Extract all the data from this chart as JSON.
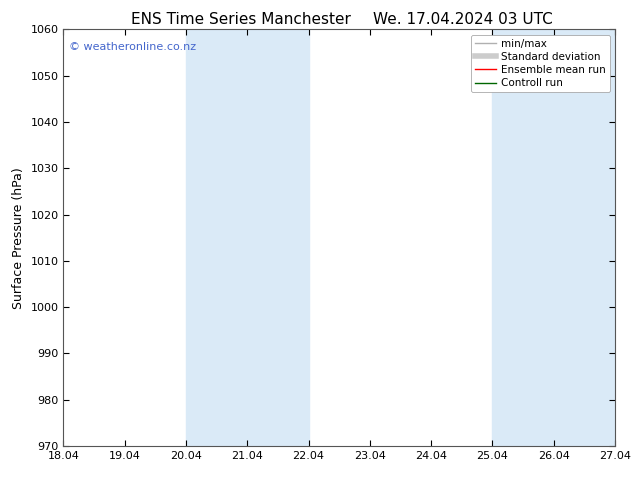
{
  "title_left": "ENS Time Series Manchester",
  "title_right": "We. 17.04.2024 03 UTC",
  "ylabel": "Surface Pressure (hPa)",
  "xlabel": "",
  "ylim": [
    970,
    1060
  ],
  "yticks": [
    970,
    980,
    990,
    1000,
    1010,
    1020,
    1030,
    1040,
    1050,
    1060
  ],
  "xtick_labels": [
    "18.04",
    "19.04",
    "20.04",
    "21.04",
    "22.04",
    "23.04",
    "24.04",
    "25.04",
    "26.04",
    "27.04"
  ],
  "xtick_positions": [
    0,
    1,
    2,
    3,
    4,
    5,
    6,
    7,
    8,
    9
  ],
  "xlim": [
    0,
    9
  ],
  "shaded_bands": [
    {
      "x_start": 2,
      "x_end": 4,
      "color": "#daeaf7"
    },
    {
      "x_start": 7,
      "x_end": 9,
      "color": "#daeaf7"
    }
  ],
  "background_color": "#ffffff",
  "watermark_text": "© weatheronline.co.nz",
  "watermark_color": "#4466cc",
  "legend_entries": [
    {
      "label": "min/max",
      "color": "#b0b0b0",
      "lw": 1.0,
      "style": "-"
    },
    {
      "label": "Standard deviation",
      "color": "#cccccc",
      "lw": 4,
      "style": "-"
    },
    {
      "label": "Ensemble mean run",
      "color": "#ff0000",
      "lw": 1.0,
      "style": "-"
    },
    {
      "label": "Controll run",
      "color": "#006600",
      "lw": 1.0,
      "style": "-"
    }
  ],
  "title_fontsize": 11,
  "axis_label_fontsize": 9,
  "tick_fontsize": 8,
  "legend_fontsize": 7.5,
  "watermark_fontsize": 8
}
